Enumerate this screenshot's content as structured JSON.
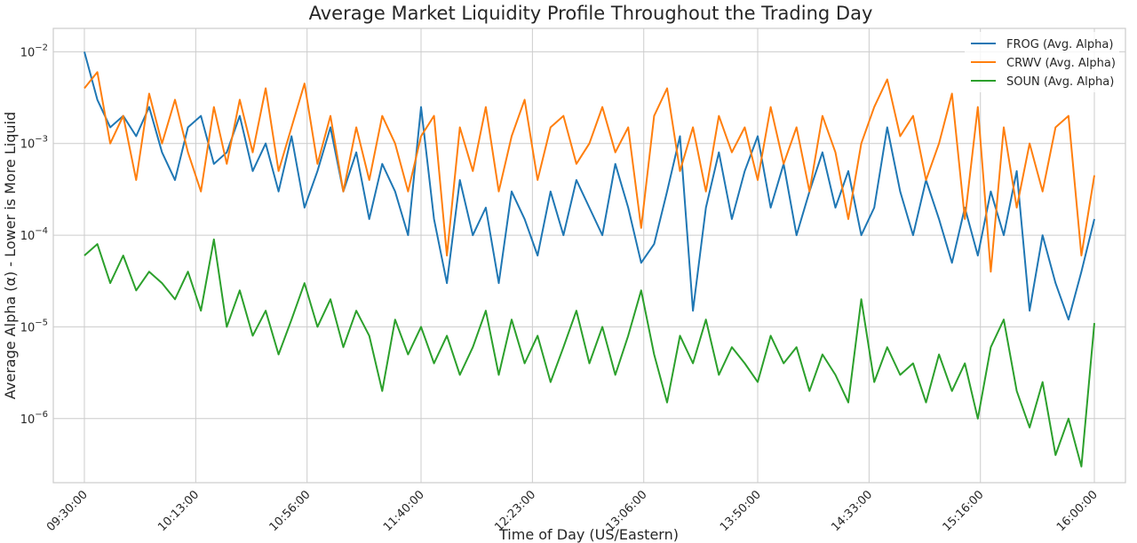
{
  "chart_data": {
    "type": "line",
    "title": "Average Market Liquidity Profile Throughout the Trading Day",
    "xlabel": "Time of Day (US/Eastern)",
    "ylabel": "Average Alpha (α) - Lower is More Liquid",
    "yscale": "log",
    "ylim": [
      2e-07,
      0.018
    ],
    "xlim": [
      "09:18:00",
      "16:12:00"
    ],
    "x_ticks": [
      "09:30:00",
      "10:13:00",
      "10:56:00",
      "11:40:00",
      "12:23:00",
      "13:06:00",
      "13:50:00",
      "14:33:00",
      "15:16:00",
      "16:00:00"
    ],
    "y_ticks": [
      {
        "base": "10",
        "exp": "−2",
        "value": 0.01
      },
      {
        "base": "10",
        "exp": "−3",
        "value": 0.001
      },
      {
        "base": "10",
        "exp": "−4",
        "value": 0.0001
      },
      {
        "base": "10",
        "exp": "−5",
        "value": 1e-05
      },
      {
        "base": "10",
        "exp": "−6",
        "value": 1e-06
      }
    ],
    "grid": true,
    "legend_position": "top-right",
    "series": [
      {
        "name": "FROG (Avg. Alpha)",
        "color": "#1f77b4",
        "points": [
          [
            "09:30:00",
            0.01
          ],
          [
            "09:35:00",
            0.003
          ],
          [
            "09:40:00",
            0.0015
          ],
          [
            "09:45:00",
            0.002
          ],
          [
            "09:50:00",
            0.0012
          ],
          [
            "09:55:00",
            0.0025
          ],
          [
            "10:00:00",
            0.0008
          ],
          [
            "10:05:00",
            0.0004
          ],
          [
            "10:10:00",
            0.0015
          ],
          [
            "10:15:00",
            0.002
          ],
          [
            "10:20:00",
            0.0006
          ],
          [
            "10:25:00",
            0.0008
          ],
          [
            "10:30:00",
            0.002
          ],
          [
            "10:35:00",
            0.0005
          ],
          [
            "10:40:00",
            0.001
          ],
          [
            "10:45:00",
            0.0003
          ],
          [
            "10:50:00",
            0.0012
          ],
          [
            "10:55:00",
            0.0002
          ],
          [
            "11:00:00",
            0.0005
          ],
          [
            "11:05:00",
            0.0015
          ],
          [
            "11:10:00",
            0.0003
          ],
          [
            "11:15:00",
            0.0008
          ],
          [
            "11:20:00",
            0.00015
          ],
          [
            "11:25:00",
            0.0006
          ],
          [
            "11:30:00",
            0.0003
          ],
          [
            "11:35:00",
            0.0001
          ],
          [
            "11:40:00",
            0.0025
          ],
          [
            "11:45:00",
            0.00015
          ],
          [
            "11:50:00",
            3e-05
          ],
          [
            "11:55:00",
            0.0004
          ],
          [
            "12:00:00",
            0.0001
          ],
          [
            "12:05:00",
            0.0002
          ],
          [
            "12:10:00",
            3e-05
          ],
          [
            "12:15:00",
            0.0003
          ],
          [
            "12:20:00",
            0.00015
          ],
          [
            "12:25:00",
            6e-05
          ],
          [
            "12:30:00",
            0.0003
          ],
          [
            "12:35:00",
            0.0001
          ],
          [
            "12:40:00",
            0.0004
          ],
          [
            "12:45:00",
            0.0002
          ],
          [
            "12:50:00",
            0.0001
          ],
          [
            "12:55:00",
            0.0006
          ],
          [
            "13:00:00",
            0.0002
          ],
          [
            "13:05:00",
            5e-05
          ],
          [
            "13:10:00",
            8e-05
          ],
          [
            "13:15:00",
            0.0003
          ],
          [
            "13:20:00",
            0.0012
          ],
          [
            "13:25:00",
            1.5e-05
          ],
          [
            "13:30:00",
            0.0002
          ],
          [
            "13:35:00",
            0.0008
          ],
          [
            "13:40:00",
            0.00015
          ],
          [
            "13:45:00",
            0.0005
          ],
          [
            "13:50:00",
            0.0012
          ],
          [
            "13:55:00",
            0.0002
          ],
          [
            "14:00:00",
            0.0006
          ],
          [
            "14:05:00",
            0.0001
          ],
          [
            "14:10:00",
            0.0003
          ],
          [
            "14:15:00",
            0.0008
          ],
          [
            "14:20:00",
            0.0002
          ],
          [
            "14:25:00",
            0.0005
          ],
          [
            "14:30:00",
            0.0001
          ],
          [
            "14:35:00",
            0.0002
          ],
          [
            "14:40:00",
            0.0015
          ],
          [
            "14:45:00",
            0.0003
          ],
          [
            "14:50:00",
            0.0001
          ],
          [
            "14:55:00",
            0.0004
          ],
          [
            "15:00:00",
            0.00015
          ],
          [
            "15:05:00",
            5e-05
          ],
          [
            "15:10:00",
            0.0002
          ],
          [
            "15:15:00",
            6e-05
          ],
          [
            "15:20:00",
            0.0003
          ],
          [
            "15:25:00",
            0.0001
          ],
          [
            "15:30:00",
            0.0005
          ],
          [
            "15:35:00",
            1.5e-05
          ],
          [
            "15:40:00",
            0.0001
          ],
          [
            "15:45:00",
            3e-05
          ],
          [
            "15:50:00",
            1.2e-05
          ],
          [
            "15:55:00",
            4e-05
          ],
          [
            "16:00:00",
            0.00015
          ]
        ]
      },
      {
        "name": "CRWV (Avg. Alpha)",
        "color": "#ff7f0e",
        "points": [
          [
            "09:30:00",
            0.004
          ],
          [
            "09:35:00",
            0.006
          ],
          [
            "09:40:00",
            0.001
          ],
          [
            "09:45:00",
            0.002
          ],
          [
            "09:50:00",
            0.0004
          ],
          [
            "09:55:00",
            0.0035
          ],
          [
            "10:00:00",
            0.001
          ],
          [
            "10:05:00",
            0.003
          ],
          [
            "10:10:00",
            0.0008
          ],
          [
            "10:15:00",
            0.0003
          ],
          [
            "10:20:00",
            0.0025
          ],
          [
            "10:25:00",
            0.0006
          ],
          [
            "10:30:00",
            0.003
          ],
          [
            "10:35:00",
            0.0008
          ],
          [
            "10:40:00",
            0.004
          ],
          [
            "10:45:00",
            0.0005
          ],
          [
            "10:50:00",
            0.0015
          ],
          [
            "10:55:00",
            0.0045
          ],
          [
            "11:00:00",
            0.0006
          ],
          [
            "11:05:00",
            0.002
          ],
          [
            "11:10:00",
            0.0003
          ],
          [
            "11:15:00",
            0.0015
          ],
          [
            "11:20:00",
            0.0004
          ],
          [
            "11:25:00",
            0.002
          ],
          [
            "11:30:00",
            0.001
          ],
          [
            "11:35:00",
            0.0003
          ],
          [
            "11:40:00",
            0.0012
          ],
          [
            "11:45:00",
            0.002
          ],
          [
            "11:50:00",
            6e-05
          ],
          [
            "11:55:00",
            0.0015
          ],
          [
            "12:00:00",
            0.0005
          ],
          [
            "12:05:00",
            0.0025
          ],
          [
            "12:10:00",
            0.0003
          ],
          [
            "12:15:00",
            0.0012
          ],
          [
            "12:20:00",
            0.003
          ],
          [
            "12:25:00",
            0.0004
          ],
          [
            "12:30:00",
            0.0015
          ],
          [
            "12:35:00",
            0.002
          ],
          [
            "12:40:00",
            0.0006
          ],
          [
            "12:45:00",
            0.001
          ],
          [
            "12:50:00",
            0.0025
          ],
          [
            "12:55:00",
            0.0008
          ],
          [
            "13:00:00",
            0.0015
          ],
          [
            "13:05:00",
            0.00012
          ],
          [
            "13:10:00",
            0.002
          ],
          [
            "13:15:00",
            0.004
          ],
          [
            "13:20:00",
            0.0005
          ],
          [
            "13:25:00",
            0.0015
          ],
          [
            "13:30:00",
            0.0003
          ],
          [
            "13:35:00",
            0.002
          ],
          [
            "13:40:00",
            0.0008
          ],
          [
            "13:45:00",
            0.0015
          ],
          [
            "13:50:00",
            0.0004
          ],
          [
            "13:55:00",
            0.0025
          ],
          [
            "14:00:00",
            0.0006
          ],
          [
            "14:05:00",
            0.0015
          ],
          [
            "14:10:00",
            0.0003
          ],
          [
            "14:15:00",
            0.002
          ],
          [
            "14:20:00",
            0.0008
          ],
          [
            "14:25:00",
            0.00015
          ],
          [
            "14:30:00",
            0.001
          ],
          [
            "14:35:00",
            0.0025
          ],
          [
            "14:40:00",
            0.005
          ],
          [
            "14:45:00",
            0.0012
          ],
          [
            "14:50:00",
            0.002
          ],
          [
            "14:55:00",
            0.0004
          ],
          [
            "15:00:00",
            0.001
          ],
          [
            "15:05:00",
            0.0035
          ],
          [
            "15:10:00",
            0.00015
          ],
          [
            "15:15:00",
            0.0025
          ],
          [
            "15:20:00",
            4e-05
          ],
          [
            "15:25:00",
            0.0015
          ],
          [
            "15:30:00",
            0.0002
          ],
          [
            "15:35:00",
            0.001
          ],
          [
            "15:40:00",
            0.0003
          ],
          [
            "15:45:00",
            0.0015
          ],
          [
            "15:50:00",
            0.002
          ],
          [
            "15:55:00",
            6e-05
          ],
          [
            "16:00:00",
            0.00045
          ]
        ]
      },
      {
        "name": "SOUN (Avg. Alpha)",
        "color": "#2ca02c",
        "points": [
          [
            "09:30:00",
            6e-05
          ],
          [
            "09:35:00",
            8e-05
          ],
          [
            "09:40:00",
            3e-05
          ],
          [
            "09:45:00",
            6e-05
          ],
          [
            "09:50:00",
            2.5e-05
          ],
          [
            "09:55:00",
            4e-05
          ],
          [
            "10:00:00",
            3e-05
          ],
          [
            "10:05:00",
            2e-05
          ],
          [
            "10:10:00",
            4e-05
          ],
          [
            "10:15:00",
            1.5e-05
          ],
          [
            "10:20:00",
            9e-05
          ],
          [
            "10:25:00",
            1e-05
          ],
          [
            "10:30:00",
            2.5e-05
          ],
          [
            "10:35:00",
            8e-06
          ],
          [
            "10:40:00",
            1.5e-05
          ],
          [
            "10:45:00",
            5e-06
          ],
          [
            "10:50:00",
            1.2e-05
          ],
          [
            "10:55:00",
            3e-05
          ],
          [
            "11:00:00",
            1e-05
          ],
          [
            "11:05:00",
            2e-05
          ],
          [
            "11:10:00",
            6e-06
          ],
          [
            "11:15:00",
            1.5e-05
          ],
          [
            "11:20:00",
            8e-06
          ],
          [
            "11:25:00",
            2e-06
          ],
          [
            "11:30:00",
            1.2e-05
          ],
          [
            "11:35:00",
            5e-06
          ],
          [
            "11:40:00",
            1e-05
          ],
          [
            "11:45:00",
            4e-06
          ],
          [
            "11:50:00",
            8e-06
          ],
          [
            "11:55:00",
            3e-06
          ],
          [
            "12:00:00",
            6e-06
          ],
          [
            "12:05:00",
            1.5e-05
          ],
          [
            "12:10:00",
            3e-06
          ],
          [
            "12:15:00",
            1.2e-05
          ],
          [
            "12:20:00",
            4e-06
          ],
          [
            "12:25:00",
            8e-06
          ],
          [
            "12:30:00",
            2.5e-06
          ],
          [
            "12:35:00",
            6e-06
          ],
          [
            "12:40:00",
            1.5e-05
          ],
          [
            "12:45:00",
            4e-06
          ],
          [
            "12:50:00",
            1e-05
          ],
          [
            "12:55:00",
            3e-06
          ],
          [
            "13:00:00",
            8e-06
          ],
          [
            "13:05:00",
            2.5e-05
          ],
          [
            "13:10:00",
            5e-06
          ],
          [
            "13:15:00",
            1.5e-06
          ],
          [
            "13:20:00",
            8e-06
          ],
          [
            "13:25:00",
            4e-06
          ],
          [
            "13:30:00",
            1.2e-05
          ],
          [
            "13:35:00",
            3e-06
          ],
          [
            "13:40:00",
            6e-06
          ],
          [
            "13:45:00",
            4e-06
          ],
          [
            "13:50:00",
            2.5e-06
          ],
          [
            "13:55:00",
            8e-06
          ],
          [
            "14:00:00",
            4e-06
          ],
          [
            "14:05:00",
            6e-06
          ],
          [
            "14:10:00",
            2e-06
          ],
          [
            "14:15:00",
            5e-06
          ],
          [
            "14:20:00",
            3e-06
          ],
          [
            "14:25:00",
            1.5e-06
          ],
          [
            "14:30:00",
            2e-05
          ],
          [
            "14:35:00",
            2.5e-06
          ],
          [
            "14:40:00",
            6e-06
          ],
          [
            "14:45:00",
            3e-06
          ],
          [
            "14:50:00",
            4e-06
          ],
          [
            "14:55:00",
            1.5e-06
          ],
          [
            "15:00:00",
            5e-06
          ],
          [
            "15:05:00",
            2e-06
          ],
          [
            "15:10:00",
            4e-06
          ],
          [
            "15:15:00",
            1e-06
          ],
          [
            "15:20:00",
            6e-06
          ],
          [
            "15:25:00",
            1.2e-05
          ],
          [
            "15:30:00",
            2e-06
          ],
          [
            "15:35:00",
            8e-07
          ],
          [
            "15:40:00",
            2.5e-06
          ],
          [
            "15:45:00",
            4e-07
          ],
          [
            "15:50:00",
            1e-06
          ],
          [
            "15:55:00",
            3e-07
          ],
          [
            "16:00:00",
            1.1e-05
          ]
        ]
      }
    ]
  }
}
